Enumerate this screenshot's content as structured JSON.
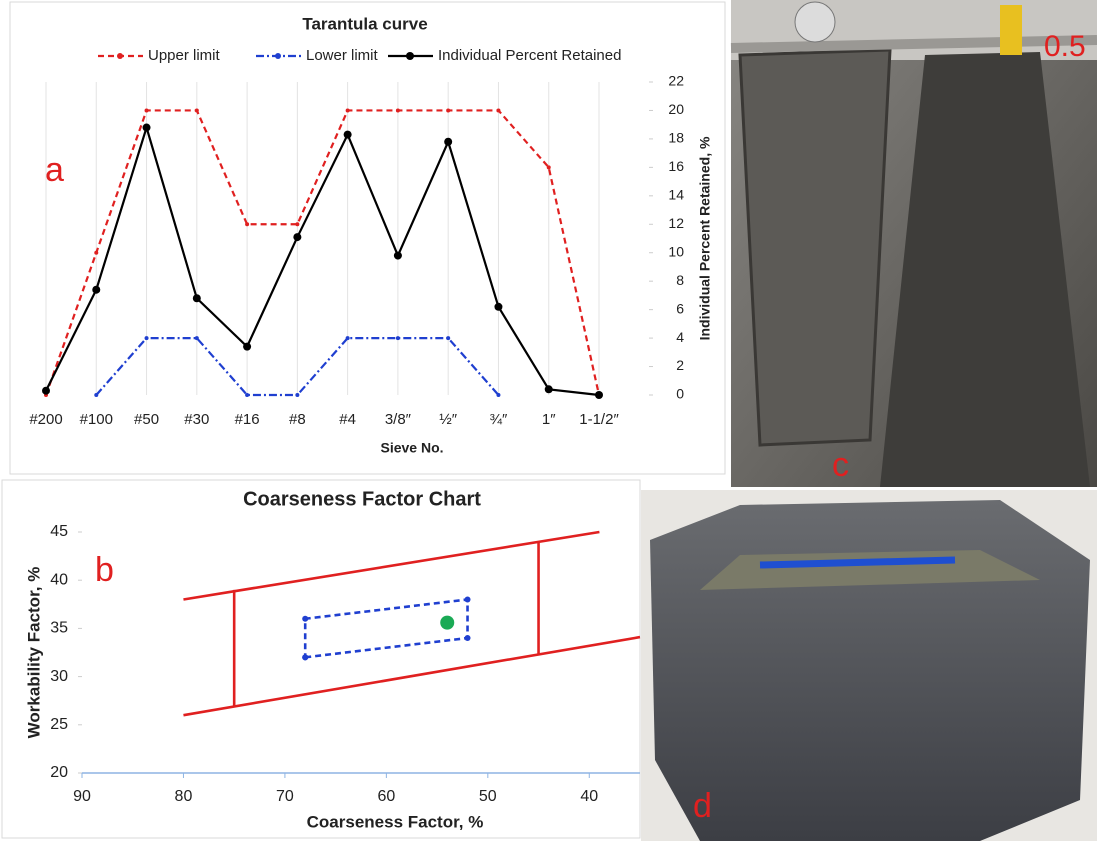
{
  "chart_data": [
    {
      "type": "line",
      "title": "Tarantula curve",
      "categories": [
        "#200",
        "#100",
        "#50",
        "#30",
        "#16",
        "#8",
        "#4",
        "3/8″",
        "½″",
        "¾″",
        "1″",
        "1-1/2″"
      ],
      "series": [
        {
          "name": "Upper limit",
          "color": "#e02020",
          "dash": "6,4",
          "marker_size": 2,
          "values": [
            0,
            10,
            20,
            20,
            12,
            12,
            20,
            20,
            20,
            20,
            16,
            0
          ]
        },
        {
          "name": "Lower limit",
          "color": "#1f3fd0",
          "dash": "8,3,2,3",
          "marker_size": 2,
          "values": [
            null,
            0,
            4,
            4,
            0,
            0,
            4,
            4,
            4,
            0,
            null,
            null
          ]
        },
        {
          "name": "Individual Percent Retained",
          "color": "#000000",
          "dash": "none",
          "marker_size": 4,
          "values": [
            0.3,
            7.4,
            18.8,
            6.8,
            3.4,
            11.1,
            18.3,
            9.8,
            17.8,
            6.2,
            0.4,
            0
          ]
        }
      ],
      "ylim": [
        0,
        22
      ],
      "yticks": [
        0,
        2,
        4,
        6,
        8,
        10,
        12,
        14,
        16,
        18,
        20,
        22
      ],
      "y_axis_side": "right",
      "grid": true,
      "xlabel": "Sieve No.",
      "ylabel": "Individual Percent Retained, %"
    },
    {
      "type": "line",
      "title": "Coarseness Factor Chart",
      "series": [
        {
          "color": "#e02020",
          "dash": "none",
          "marker_size": 0,
          "x": [
            80,
            39
          ],
          "values": [
            38,
            45
          ]
        },
        {
          "color": "#e02020",
          "dash": "none",
          "marker_size": 0,
          "x": [
            80,
            35
          ],
          "values": [
            26,
            34.1
          ]
        },
        {
          "color": "#e02020",
          "dash": "none",
          "marker_size": 0,
          "x": [
            75,
            75
          ],
          "values": [
            27,
            39
          ]
        },
        {
          "color": "#e02020",
          "dash": "none",
          "marker_size": 0,
          "x": [
            45,
            45
          ],
          "values": [
            32.3,
            44
          ]
        },
        {
          "color": "#1f3fd0",
          "dash": "6,4",
          "marker_size": 3,
          "x": [
            68,
            52,
            52,
            68,
            68
          ],
          "values": [
            32,
            34,
            38,
            36,
            32
          ]
        },
        {
          "color": "#1aaa55",
          "dash": "none",
          "marker_size": 7,
          "x": [
            54
          ],
          "values": [
            35.6
          ]
        }
      ],
      "xlim": [
        90,
        35
      ],
      "xticks": [
        90,
        80,
        70,
        60,
        50,
        40
      ],
      "ylim": [
        20,
        45
      ],
      "yticks": [
        20,
        25,
        30,
        35,
        40,
        45
      ],
      "xlabel": "Coarseness Factor, %",
      "ylabel": "Workability Factor, %"
    }
  ],
  "panel_labels": [
    "a",
    "b",
    "c",
    "d"
  ],
  "ruler_text": "0.5"
}
